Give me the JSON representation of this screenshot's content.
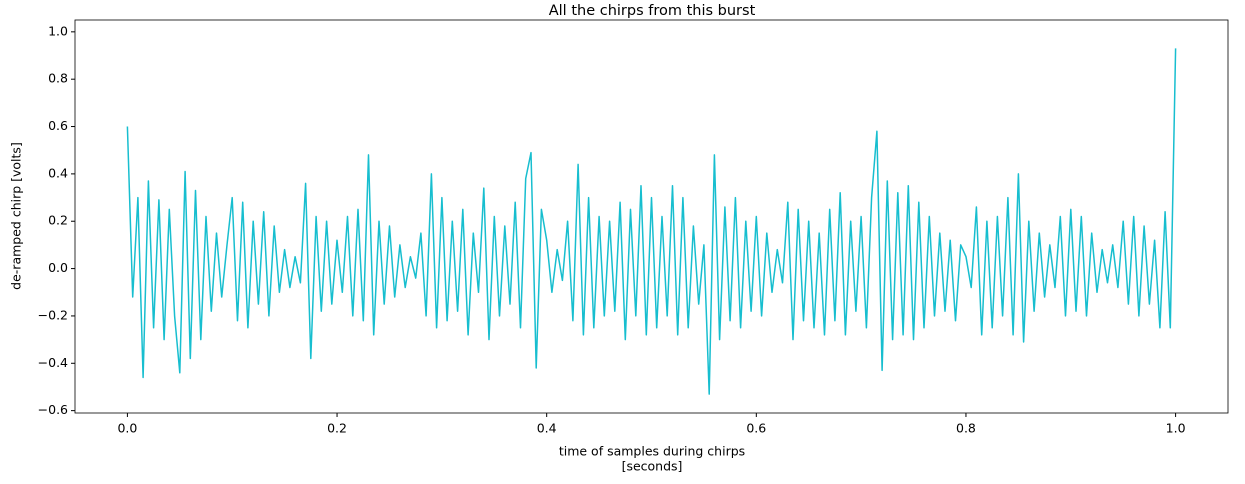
{
  "chart_data": {
    "type": "line",
    "title": "All the chirps from this burst",
    "xlabel": [
      "time of samples during chirps",
      "[seconds]"
    ],
    "ylabel": "de-ramped chirp [volts]",
    "xlim": [
      -0.05,
      1.05
    ],
    "ylim": [
      -0.61,
      1.05
    ],
    "xticks": [
      {
        "value": 0,
        "label": "0.0"
      },
      0.2,
      0.4,
      0.6,
      0.8,
      {
        "value": 1,
        "label": "1.0"
      }
    ],
    "yticks": [
      {
        "value": -0.6,
        "label": "−0.6"
      },
      {
        "value": -0.4,
        "label": "−0.4"
      },
      {
        "value": -0.2,
        "label": "−0.2"
      },
      {
        "value": 0,
        "label": "0.0"
      },
      0.2,
      0.4,
      0.6,
      0.8,
      {
        "value": 1,
        "label": "1.0"
      }
    ],
    "grid": false,
    "x": [
      0,
      0.005,
      0.01,
      0.015,
      0.02,
      0.025,
      0.03,
      0.035,
      0.04,
      0.045,
      0.05,
      0.055,
      0.06,
      0.065,
      0.07,
      0.075,
      0.08,
      0.085,
      0.09,
      0.095,
      0.1,
      0.105,
      0.11,
      0.115,
      0.12,
      0.125,
      0.13,
      0.135,
      0.14,
      0.145,
      0.15,
      0.155,
      0.16,
      0.165,
      0.17,
      0.175,
      0.18,
      0.185,
      0.19,
      0.195,
      0.2,
      0.205,
      0.21,
      0.215,
      0.22,
      0.225,
      0.23,
      0.235,
      0.24,
      0.245,
      0.25,
      0.255,
      0.26,
      0.265,
      0.27,
      0.275,
      0.28,
      0.285,
      0.29,
      0.295,
      0.3,
      0.305,
      0.31,
      0.315,
      0.32,
      0.325,
      0.33,
      0.335,
      0.34,
      0.345,
      0.35,
      0.355,
      0.36,
      0.365,
      0.37,
      0.375,
      0.38,
      0.385,
      0.39,
      0.395,
      0.4,
      0.405,
      0.41,
      0.415,
      0.42,
      0.425,
      0.43,
      0.435,
      0.44,
      0.445,
      0.45,
      0.455,
      0.46,
      0.465,
      0.47,
      0.475,
      0.48,
      0.485,
      0.49,
      0.495,
      0.5,
      0.505,
      0.51,
      0.515,
      0.52,
      0.525,
      0.53,
      0.535,
      0.54,
      0.545,
      0.55,
      0.555,
      0.56,
      0.565,
      0.57,
      0.575,
      0.58,
      0.585,
      0.59,
      0.595,
      0.6,
      0.605,
      0.61,
      0.615,
      0.62,
      0.625,
      0.63,
      0.635,
      0.64,
      0.645,
      0.65,
      0.655,
      0.66,
      0.665,
      0.67,
      0.675,
      0.68,
      0.685,
      0.69,
      0.695,
      0.7,
      0.705,
      0.71,
      0.715,
      0.72,
      0.725,
      0.73,
      0.735,
      0.74,
      0.745,
      0.75,
      0.755,
      0.76,
      0.765,
      0.77,
      0.775,
      0.78,
      0.785,
      0.79,
      0.795,
      0.8,
      0.805,
      0.81,
      0.815,
      0.82,
      0.825,
      0.83,
      0.835,
      0.84,
      0.845,
      0.85,
      0.855,
      0.86,
      0.865,
      0.87,
      0.875,
      0.88,
      0.885,
      0.89,
      0.895,
      0.9,
      0.905,
      0.91,
      0.915,
      0.92,
      0.925,
      0.93,
      0.935,
      0.94,
      0.945,
      0.95,
      0.955,
      0.96,
      0.965,
      0.97,
      0.975,
      0.98,
      0.985,
      0.99,
      0.995,
      1
    ],
    "series": [
      {
        "color": "#17becf",
        "values": [
          0.6,
          -0.12,
          0.3,
          -0.46,
          0.37,
          -0.25,
          0.29,
          -0.3,
          0.25,
          -0.2,
          -0.44,
          0.41,
          -0.38,
          0.33,
          -0.3,
          0.22,
          -0.18,
          0.15,
          -0.12,
          0.1,
          0.3,
          -0.22,
          0.28,
          -0.25,
          0.2,
          -0.15,
          0.24,
          -0.2,
          0.18,
          -0.1,
          0.08,
          -0.08,
          0.05,
          -0.06,
          0.36,
          -0.38,
          0.22,
          -0.18,
          0.2,
          -0.15,
          0.12,
          -0.1,
          0.22,
          -0.2,
          0.25,
          -0.22,
          0.48,
          -0.28,
          0.2,
          -0.15,
          0.18,
          -0.12,
          0.1,
          -0.08,
          0.05,
          -0.04,
          0.15,
          -0.2,
          0.4,
          -0.25,
          0.3,
          -0.22,
          0.2,
          -0.18,
          0.25,
          -0.28,
          0.15,
          -0.1,
          0.34,
          -0.3,
          0.22,
          -0.2,
          0.18,
          -0.15,
          0.28,
          -0.25,
          0.38,
          0.49,
          -0.42,
          0.25,
          0.12,
          -0.1,
          0.08,
          -0.05,
          0.2,
          -0.22,
          0.44,
          -0.28,
          0.3,
          -0.25,
          0.22,
          -0.2,
          0.2,
          -0.18,
          0.28,
          -0.3,
          0.25,
          -0.2,
          0.35,
          -0.28,
          0.3,
          -0.25,
          0.22,
          -0.2,
          0.35,
          -0.28,
          0.3,
          -0.25,
          0.18,
          -0.15,
          0.1,
          -0.53,
          0.48,
          -0.3,
          0.26,
          -0.22,
          0.3,
          -0.25,
          0.2,
          -0.18,
          0.22,
          -0.2,
          0.15,
          -0.1,
          0.08,
          -0.06,
          0.28,
          -0.3,
          0.25,
          -0.22,
          0.2,
          -0.25,
          0.15,
          -0.28,
          0.25,
          -0.22,
          0.32,
          -0.28,
          0.2,
          -0.18,
          0.22,
          -0.25,
          0.3,
          0.58,
          -0.43,
          0.37,
          -0.3,
          0.32,
          -0.28,
          0.35,
          -0.3,
          0.28,
          -0.25,
          0.22,
          -0.2,
          0.15,
          -0.18,
          0.12,
          -0.22,
          0.1,
          0.05,
          -0.08,
          0.26,
          -0.28,
          0.2,
          -0.25,
          0.22,
          -0.2,
          0.3,
          -0.28,
          0.4,
          -0.31,
          0.2,
          -0.18,
          0.15,
          -0.12,
          0.1,
          -0.08,
          0.22,
          -0.2,
          0.25,
          -0.18,
          0.22,
          -0.2,
          0.15,
          -0.1,
          0.08,
          -0.06,
          0.1,
          -0.08,
          0.2,
          -0.15,
          0.22,
          -0.2,
          0.18,
          -0.15,
          0.12,
          -0.25,
          0.24,
          -0.25,
          0.93
        ]
      }
    ]
  }
}
